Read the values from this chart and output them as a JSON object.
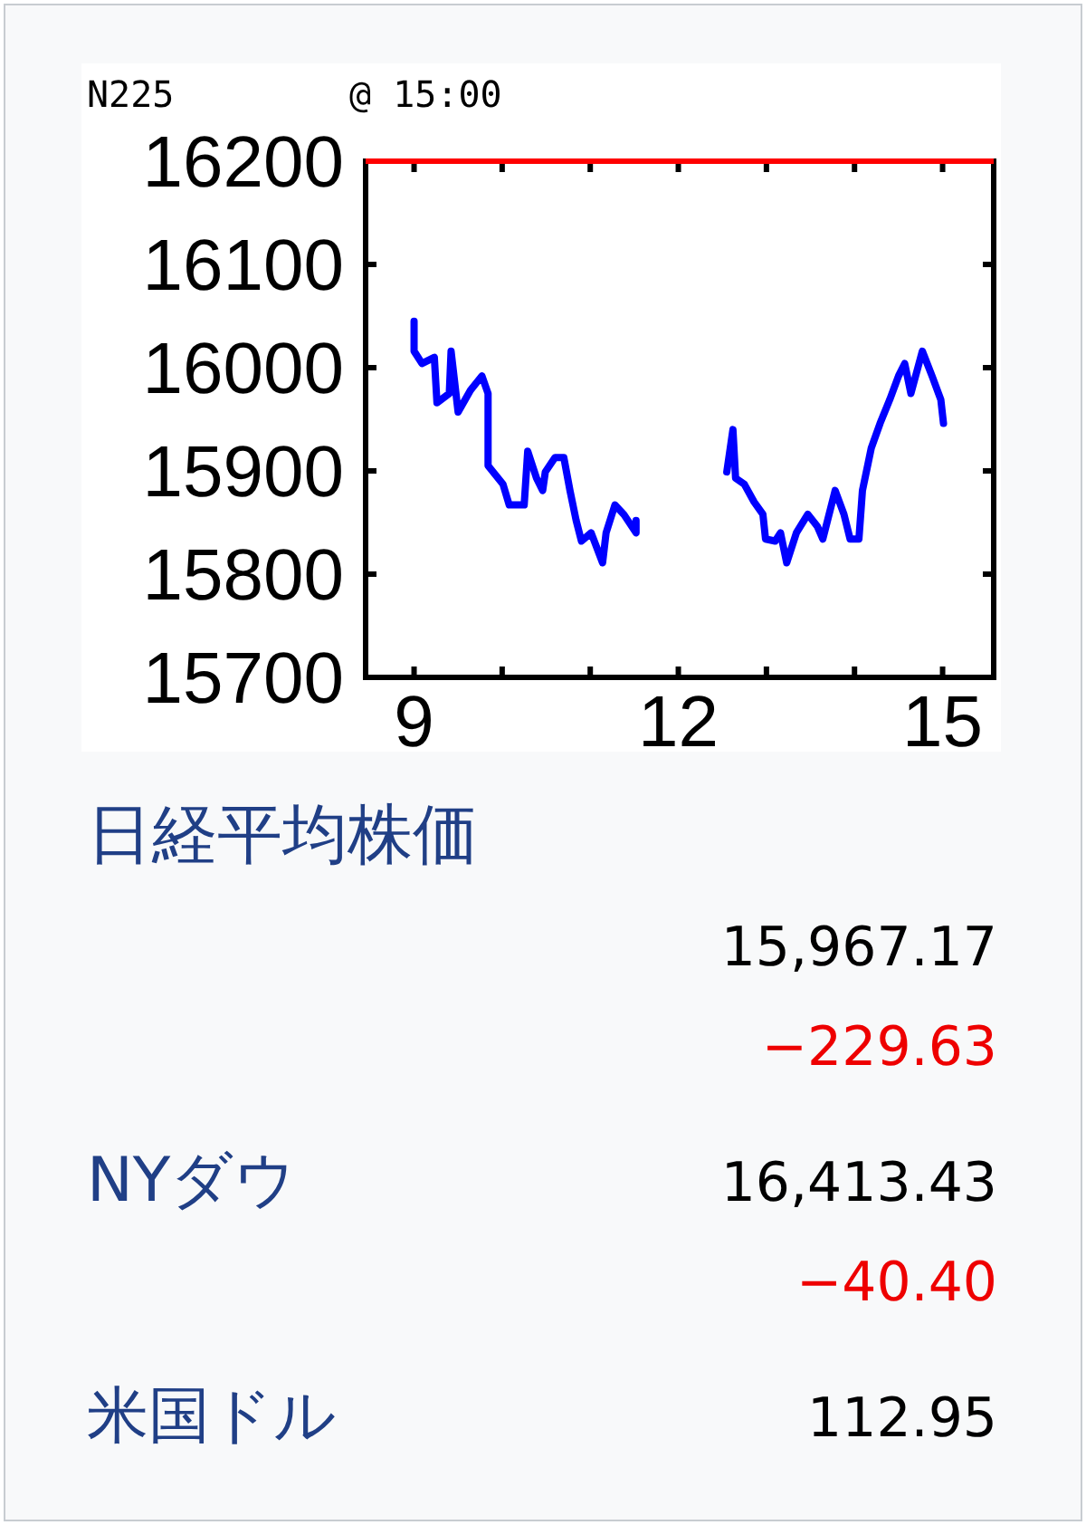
{
  "chart_data": [
    {
      "type": "line",
      "title": "N225",
      "subtitle": "@ 15:00",
      "xlim": [
        8.45,
        15.58
      ],
      "ylim": [
        15700,
        16200
      ],
      "xticks": [
        9,
        {
          "value": 10,
          "label": null
        },
        {
          "value": 11,
          "label": null
        },
        12,
        {
          "value": 13,
          "label": null
        },
        {
          "value": 14,
          "label": null
        },
        15
      ],
      "yticks": [
        15700,
        15800,
        15900,
        16000,
        16100,
        16200
      ],
      "ref_lines": [
        {
          "axis": "y",
          "value": 16200,
          "color": "#ff0000"
        }
      ],
      "series": [
        {
          "color": "#0000ff",
          "x": [
            9.0,
            9.0,
            9.09,
            9.23,
            9.26,
            9.4,
            9.42,
            9.5,
            9.64,
            9.77,
            9.84,
            9.84,
            10.01,
            10.08,
            10.25,
            10.29,
            10.39,
            10.46,
            10.49,
            10.6,
            10.7,
            10.77,
            10.84,
            10.9,
            11.01,
            11.14,
            11.18,
            11.28,
            11.38,
            11.52,
            11.52,
            null,
            12.55,
            12.62,
            12.65,
            12.75,
            12.86,
            12.96,
            12.99,
            13.1,
            13.16,
            13.23,
            13.34,
            13.47,
            13.58,
            13.64,
            13.78,
            13.88,
            13.95,
            14.05,
            14.09,
            14.19,
            14.29,
            14.4,
            14.5,
            14.57,
            14.64,
            14.77,
            14.88,
            14.98,
            15.01
          ],
          "values": [
            16045,
            16016,
            16004,
            16010,
            15966,
            15975,
            16016,
            15957,
            15978,
            15992,
            15975,
            15905,
            15887,
            15867,
            15867,
            15919,
            15893,
            15881,
            15899,
            15913,
            15913,
            15881,
            15852,
            15832,
            15840,
            15811,
            15840,
            15867,
            15858,
            15840,
            15852,
            null,
            15899,
            15940,
            15893,
            15887,
            15870,
            15858,
            15834,
            15832,
            15840,
            15811,
            15840,
            15858,
            15846,
            15834,
            15881,
            15858,
            15834,
            15834,
            15881,
            15922,
            15946,
            15969,
            15992,
            16004,
            15975,
            16016,
            15992,
            15969,
            15946
          ]
        }
      ]
    },
    {
      "type": "other",
      "annotations": [
        "日経平均株価",
        "15,967.17",
        "−229.63",
        "NYダウ",
        "16,413.43",
        "−40.40",
        "米国ドル",
        "112.95"
      ]
    }
  ]
}
